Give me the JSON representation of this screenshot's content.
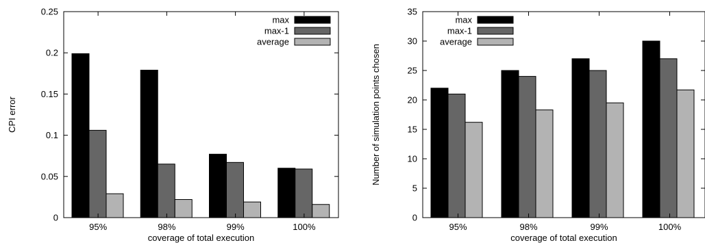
{
  "chart_data": [
    {
      "type": "bar",
      "categories": [
        "95%",
        "98%",
        "99%",
        "100%"
      ],
      "xlabel": "coverage of total execution",
      "ylabel": "CPI error",
      "ylim": [
        0,
        0.25
      ],
      "yticks": [
        0,
        0.05,
        0.1,
        0.15,
        0.2,
        0.25
      ],
      "ytick_labels": [
        "0",
        "0.05",
        "0.1",
        "0.15",
        "0.2",
        "0.25"
      ],
      "legend_position": "top-right",
      "grid": false,
      "series": [
        {
          "name": "max",
          "color": "#000000",
          "values": [
            0.199,
            0.179,
            0.077,
            0.06
          ]
        },
        {
          "name": "max-1",
          "color": "#666666",
          "values": [
            0.106,
            0.065,
            0.067,
            0.059
          ]
        },
        {
          "name": "average",
          "color": "#b3b3b3",
          "values": [
            0.029,
            0.022,
            0.019,
            0.016
          ]
        }
      ]
    },
    {
      "type": "bar",
      "categories": [
        "95%",
        "98%",
        "99%",
        "100%"
      ],
      "xlabel": "coverage of total execution",
      "ylabel": "Number of simulation points chosen",
      "ylim": [
        0,
        35
      ],
      "yticks": [
        0,
        5,
        10,
        15,
        20,
        25,
        30,
        35
      ],
      "ytick_labels": [
        "0",
        "5",
        "10",
        "15",
        "20",
        "25",
        "30",
        "35"
      ],
      "legend_position": "top-left",
      "grid": false,
      "series": [
        {
          "name": "max",
          "color": "#000000",
          "values": [
            22,
            25,
            27,
            30
          ]
        },
        {
          "name": "max-1",
          "color": "#666666",
          "values": [
            21,
            24,
            25,
            27
          ]
        },
        {
          "name": "average",
          "color": "#b3b3b3",
          "values": [
            16.2,
            18.3,
            19.5,
            21.7
          ]
        }
      ]
    }
  ]
}
